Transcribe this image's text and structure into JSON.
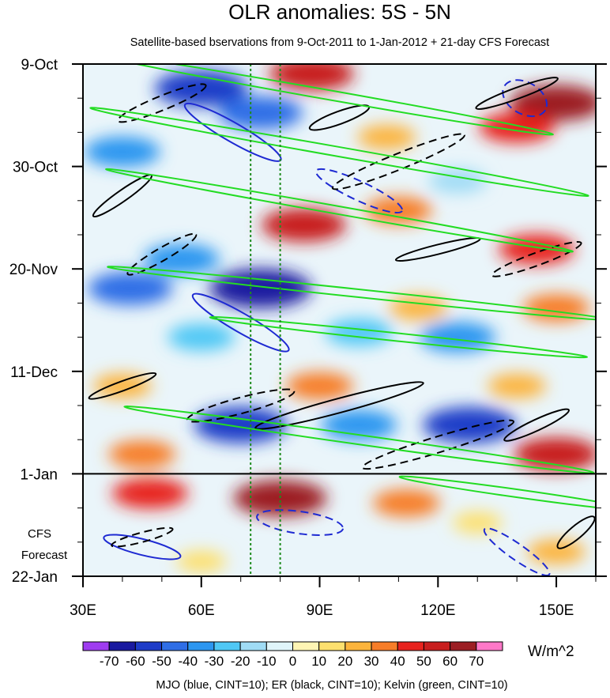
{
  "chart_data": {
    "type": "heatmap",
    "title": "OLR anomalies: 5S - 5N",
    "subtitle": "Satellite-based bservations from 9-Oct-2011 to 1-Jan-2012 + 21-day CFS Forecast",
    "x_ticks": [
      "30E",
      "60E",
      "90E",
      "120E",
      "150E"
    ],
    "x_tick_values": [
      30,
      60,
      90,
      120,
      150
    ],
    "xlim": [
      30,
      160
    ],
    "y_ticks": [
      "9-Oct",
      "30-Oct",
      "20-Nov",
      "11-Dec",
      "1-Jan",
      "22-Jan"
    ],
    "y_tick_days": [
      0,
      21,
      42,
      63,
      84,
      105
    ],
    "ylim_days": [
      0,
      105
    ],
    "forecast_label": [
      "CFS",
      "Forecast"
    ],
    "forecast_start_day": 84,
    "reference_lon_lines": [
      72.5,
      80
    ],
    "colorbar": {
      "labels": [
        "-70",
        "-60",
        "-50",
        "-40",
        "-30",
        "-20",
        "-10",
        "0",
        "10",
        "20",
        "30",
        "40",
        "50",
        "60",
        "70"
      ],
      "colors": [
        "#9f3cf0",
        "#1a1aa0",
        "#1e3cc8",
        "#2f6ee6",
        "#2c96f0",
        "#50c8f5",
        "#a0dcf5",
        "#e0f5fa",
        "#fff5b4",
        "#fde06e",
        "#fcb43c",
        "#f77d28",
        "#e8231e",
        "#c81e1e",
        "#9c1e24",
        "#ff78c8"
      ],
      "units": "W/m^2"
    },
    "contours_legend": "MJO (blue, CINT=10); ER (black, CINT=10); Kelvin (green, CINT=10)",
    "contour_colors": {
      "mjo": "#1e2ad2",
      "er": "#000000",
      "kelvin": "#23dc23"
    },
    "anomaly_blobs": [
      {
        "lon": 88,
        "day": 2,
        "value": 50
      },
      {
        "lon": 60,
        "day": 5,
        "value": -60
      },
      {
        "lon": 75,
        "day": 10,
        "value": -50
      },
      {
        "lon": 150,
        "day": 8,
        "value": 60
      },
      {
        "lon": 140,
        "day": 13,
        "value": 40
      },
      {
        "lon": 107,
        "day": 15,
        "value": 20
      },
      {
        "lon": 40,
        "day": 18,
        "value": -40
      },
      {
        "lon": 125,
        "day": 24,
        "value": -20
      },
      {
        "lon": 86,
        "day": 33,
        "value": 50
      },
      {
        "lon": 110,
        "day": 30,
        "value": 30
      },
      {
        "lon": 55,
        "day": 40,
        "value": -40
      },
      {
        "lon": 145,
        "day": 38,
        "value": 40
      },
      {
        "lon": 75,
        "day": 46,
        "value": -70
      },
      {
        "lon": 42,
        "day": 46,
        "value": -50
      },
      {
        "lon": 115,
        "day": 50,
        "value": 20
      },
      {
        "lon": 150,
        "day": 50,
        "value": 30
      },
      {
        "lon": 60,
        "day": 56,
        "value": -30
      },
      {
        "lon": 100,
        "day": 55,
        "value": -30
      },
      {
        "lon": 125,
        "day": 56,
        "value": -40
      },
      {
        "lon": 40,
        "day": 66,
        "value": 20
      },
      {
        "lon": 90,
        "day": 66,
        "value": 30
      },
      {
        "lon": 140,
        "day": 66,
        "value": 20
      },
      {
        "lon": 70,
        "day": 74,
        "value": -60
      },
      {
        "lon": 100,
        "day": 74,
        "value": -40
      },
      {
        "lon": 128,
        "day": 74,
        "value": -60
      },
      {
        "lon": 45,
        "day": 80,
        "value": 30
      },
      {
        "lon": 150,
        "day": 80,
        "value": 50
      },
      {
        "lon": 80,
        "day": 89,
        "value": 60
      },
      {
        "lon": 47,
        "day": 88,
        "value": 40
      },
      {
        "lon": 112,
        "day": 90,
        "value": 30
      },
      {
        "lon": 130,
        "day": 94,
        "value": 10
      },
      {
        "lon": 60,
        "day": 102,
        "value": 10
      },
      {
        "lon": 150,
        "day": 100,
        "value": 20
      }
    ]
  }
}
